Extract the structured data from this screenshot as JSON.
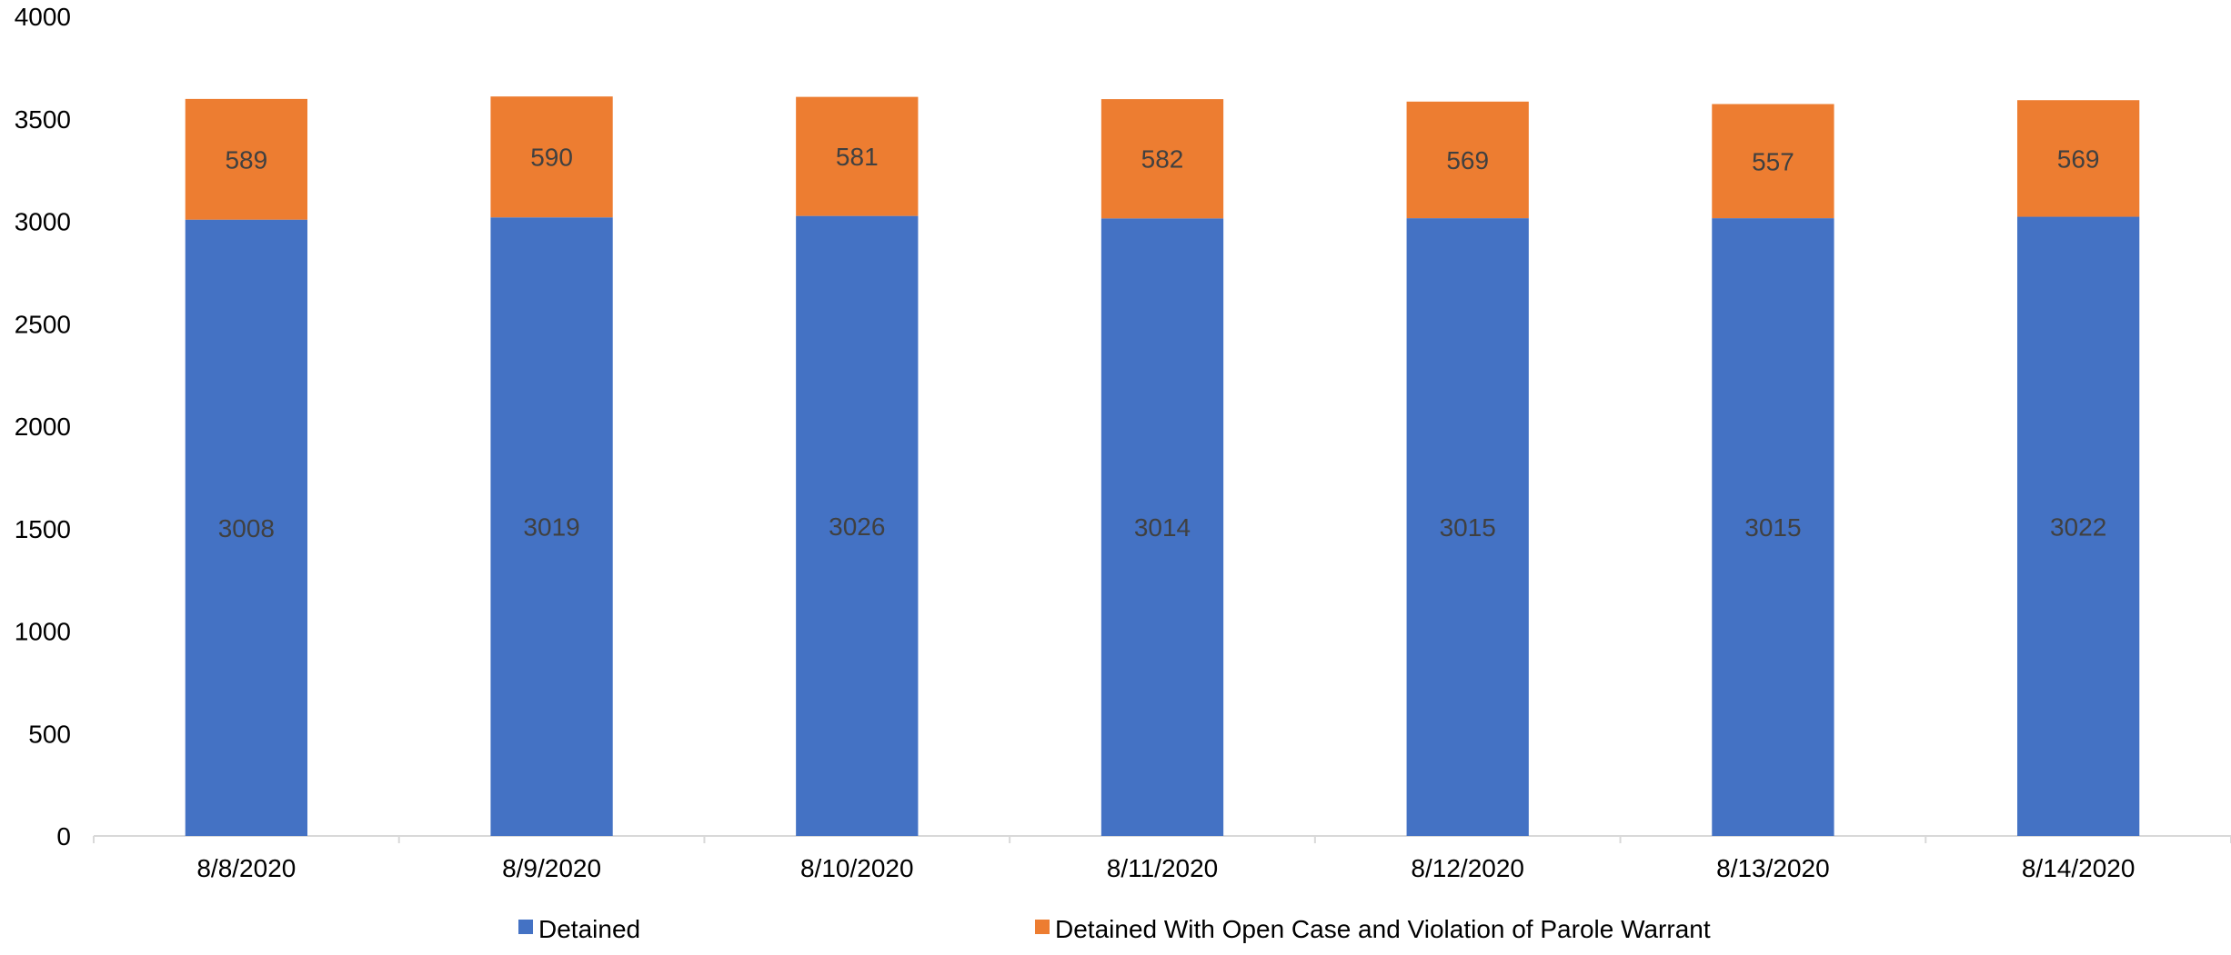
{
  "chart_data": {
    "type": "bar",
    "stacked": true,
    "categories": [
      "8/8/2020",
      "8/9/2020",
      "8/10/2020",
      "8/11/2020",
      "8/12/2020",
      "8/13/2020",
      "8/14/2020"
    ],
    "series": [
      {
        "name": "Detained",
        "color": "#4472C4",
        "values": [
          3008,
          3019,
          3026,
          3014,
          3015,
          3015,
          3022
        ]
      },
      {
        "name": "Detained With Open Case and Violation of Parole Warrant",
        "color": "#ED7D31",
        "values": [
          589,
          590,
          581,
          582,
          569,
          557,
          569
        ]
      }
    ],
    "ylim": [
      0,
      4000
    ],
    "yticks": [
      0,
      500,
      1000,
      1500,
      2000,
      2500,
      3000,
      3500,
      4000
    ],
    "grid": false,
    "legend": "bottom",
    "data_labels": true
  }
}
